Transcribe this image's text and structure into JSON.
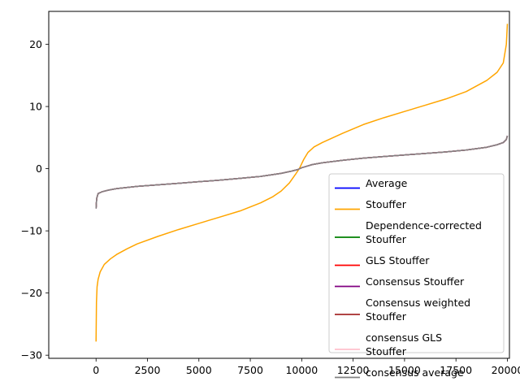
{
  "chart_data": {
    "type": "line",
    "title": "",
    "xlabel": "",
    "ylabel": "",
    "xlim": [
      -2300,
      20100
    ],
    "ylim": [
      -30.5,
      25.3
    ],
    "xticks": [
      0,
      2500,
      5000,
      7500,
      10000,
      12500,
      15000,
      17500,
      20000
    ],
    "yticks": [
      -30,
      -20,
      -10,
      0,
      10,
      20
    ],
    "grid": false,
    "legend_position": "lower-right",
    "series": [
      {
        "name": "Average",
        "color": "#0000ff",
        "shape": "consensus",
        "x": [
          0,
          30,
          100,
          300,
          600,
          1000,
          2000,
          3000,
          4000,
          5000,
          6000,
          7000,
          8000,
          8500,
          9000,
          9500,
          9800,
          10000,
          10200,
          10500,
          11000,
          12000,
          13000,
          14000,
          15000,
          16000,
          17000,
          18000,
          19000,
          19500,
          19800,
          19950,
          20000
        ],
        "y": [
          -6.4,
          -4.8,
          -4.0,
          -3.7,
          -3.45,
          -3.2,
          -2.85,
          -2.6,
          -2.35,
          -2.1,
          -1.85,
          -1.55,
          -1.25,
          -1.0,
          -0.75,
          -0.4,
          -0.15,
          0.15,
          0.35,
          0.65,
          0.95,
          1.35,
          1.7,
          1.95,
          2.2,
          2.45,
          2.7,
          3.0,
          3.45,
          3.85,
          4.2,
          4.7,
          5.3
        ]
      },
      {
        "name": "Stouffer",
        "color": "#ffa500",
        "shape": "stouffer",
        "x": [
          0,
          20,
          50,
          100,
          200,
          400,
          700,
          1000,
          1500,
          2000,
          3000,
          4000,
          5000,
          6000,
          7000,
          8000,
          8600,
          9000,
          9400,
          9700,
          9900,
          10000,
          10100,
          10300,
          10600,
          11000,
          12000,
          13000,
          14000,
          15000,
          16000,
          17000,
          18000,
          19000,
          19500,
          19800,
          19950,
          20000
        ],
        "y": [
          -27.8,
          -21.5,
          -19.0,
          -17.8,
          -16.6,
          -15.4,
          -14.5,
          -13.8,
          -12.9,
          -12.1,
          -10.9,
          -9.8,
          -8.8,
          -7.8,
          -6.8,
          -5.5,
          -4.5,
          -3.6,
          -2.3,
          -0.9,
          0.1,
          0.8,
          1.5,
          2.6,
          3.5,
          4.2,
          5.7,
          7.1,
          8.2,
          9.2,
          10.2,
          11.2,
          12.4,
          14.2,
          15.5,
          17.0,
          20.0,
          23.3
        ]
      },
      {
        "name": "Dependence-corrected Stouffer",
        "color": "#008000",
        "shape": "consensus"
      },
      {
        "name": "GLS Stouffer",
        "color": "#ff0000",
        "shape": "consensus"
      },
      {
        "name": "Consensus Stouffer",
        "color": "#800080",
        "shape": "consensus"
      },
      {
        "name": "Consensus weighted Stouffer",
        "color": "#a52a2a",
        "shape": "consensus"
      },
      {
        "name": "consensus GLS Stouffer",
        "color": "#ffc0cb",
        "shape": "consensus"
      },
      {
        "name": "consensus average",
        "color": "#808080",
        "shape": "consensus"
      }
    ],
    "legend": [
      [
        "Average"
      ],
      [
        "Stouffer"
      ],
      [
        "Dependence-corrected",
        "Stouffer"
      ],
      [
        "GLS Stouffer"
      ],
      [
        "Consensus Stouffer"
      ],
      [
        "Consensus weighted",
        "Stouffer"
      ],
      [
        "consensus GLS",
        "Stouffer"
      ],
      [
        "consensus average"
      ]
    ]
  }
}
